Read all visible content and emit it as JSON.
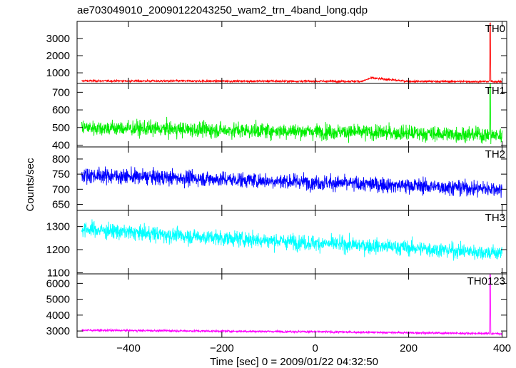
{
  "chart_data": {
    "type": "line",
    "title": "ae703049010_20090122043250_wam2_trn_4band_long.qdp",
    "xlabel": "Time [sec] 0 = 2009/01/22 04:32:50",
    "ylabel": "Counts/sec",
    "xlim": [
      -510,
      410
    ],
    "xticks": [
      -400,
      -200,
      0,
      200,
      400
    ],
    "grid": false,
    "panels": [
      {
        "name": "TH0",
        "color": "#ff0000",
        "ylim": [
          380,
          4000
        ],
        "yticks": [
          1000,
          2000,
          3000
        ],
        "x": [
          -500,
          -400,
          -300,
          -200,
          -100,
          0,
          100,
          120,
          200,
          300,
          373,
          374,
          375,
          376,
          380,
          400
        ],
        "y": [
          530,
          525,
          520,
          515,
          512,
          508,
          505,
          700,
          500,
          495,
          490,
          3900,
          3900,
          490,
          488,
          485
        ]
      },
      {
        "name": "TH1",
        "color": "#00ee00",
        "ylim": [
          390,
          750
        ],
        "yticks": [
          400,
          500,
          600,
          700
        ],
        "x": [
          -500,
          -400,
          -300,
          -200,
          -100,
          0,
          100,
          200,
          300,
          373,
          374,
          375,
          376,
          380,
          400
        ],
        "y": [
          500,
          495,
          490,
          485,
          482,
          478,
          473,
          468,
          462,
          458,
          740,
          740,
          455,
          455,
          452
        ]
      },
      {
        "name": "TH2",
        "color": "#0000ff",
        "ylim": [
          630,
          840
        ],
        "yticks": [
          650,
          700,
          750,
          800
        ],
        "x": [
          -500,
          -400,
          -300,
          -200,
          -100,
          0,
          100,
          200,
          300,
          400
        ],
        "y": [
          748,
          742,
          738,
          733,
          728,
          723,
          717,
          712,
          706,
          700
        ]
      },
      {
        "name": "TH3",
        "color": "#00ffff",
        "ylim": [
          1095,
          1370
        ],
        "yticks": [
          1100,
          1200,
          1300
        ],
        "x": [
          -500,
          -400,
          -300,
          -200,
          -100,
          0,
          100,
          200,
          300,
          400
        ],
        "y": [
          1290,
          1275,
          1262,
          1250,
          1240,
          1228,
          1218,
          1208,
          1195,
          1185
        ]
      },
      {
        "name": "TH0123",
        "color": "#ff00ff",
        "ylim": [
          2600,
          6600
        ],
        "yticks": [
          3000,
          4000,
          5000,
          6000
        ],
        "x": [
          -500,
          -400,
          -300,
          -200,
          -100,
          0,
          100,
          200,
          300,
          373,
          374,
          375,
          376,
          380,
          400
        ],
        "y": [
          3050,
          3030,
          3010,
          2990,
          2970,
          2950,
          2920,
          2890,
          2860,
          2840,
          6600,
          6600,
          2840,
          2835,
          2830
        ]
      }
    ]
  }
}
